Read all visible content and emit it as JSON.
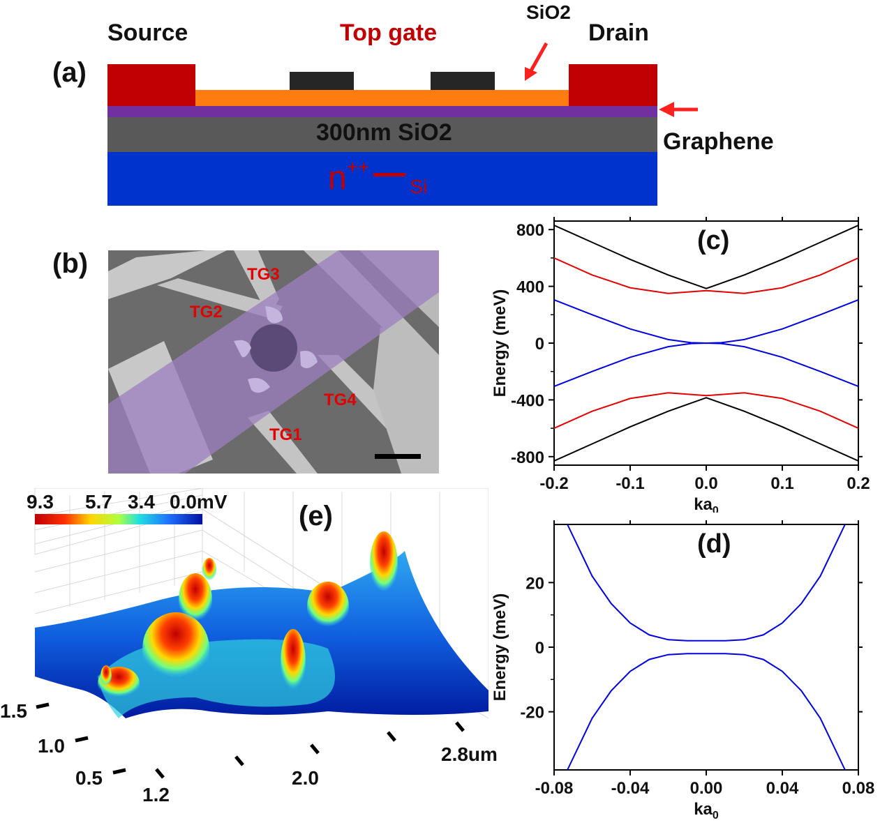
{
  "panel_a": {
    "label": "(a)",
    "source": "Source",
    "top_gate": "Top gate",
    "sio2_top": "SiO2",
    "drain": "Drain",
    "oxide": "300nm SiO2",
    "graphene": "Graphene",
    "substrate_main": "n",
    "substrate_sup": "++",
    "substrate_sub": "Si",
    "colors": {
      "contact": "#c00000",
      "oxide_top": "#ff7c10",
      "gate": "#262626",
      "graphene": "#7030a0",
      "sio2": "#595959",
      "si": "#0033cc",
      "red_text": "#c00000"
    }
  },
  "panel_b": {
    "label": "(b)",
    "tg1": "TG1",
    "tg2": "TG2",
    "tg3": "TG3",
    "tg4": "TG4"
  },
  "panel_e": {
    "label": "(e)",
    "colorbar_ticks": [
      "9.3",
      "5.7",
      "3.4",
      "0.0mV"
    ],
    "y_ticks": [
      "1.5",
      "1.0",
      "0.5"
    ],
    "x_ticks": [
      "1.2",
      "2.0",
      "2.8um"
    ]
  },
  "chart_data": [
    {
      "type": "line",
      "panel": "(c)",
      "xlabel": "ka0",
      "ylabel": "Energy (meV)",
      "xlim": [
        -0.2,
        0.2
      ],
      "ylim": [
        -860,
        860
      ],
      "xticks": [
        -0.2,
        -0.1,
        0.0,
        0.1,
        0.2
      ],
      "xtick_labels": [
        "-0.2",
        "-0.1",
        "0.0",
        "0.1",
        "0.2"
      ],
      "yticks": [
        -800,
        -400,
        0,
        400,
        800
      ],
      "ytick_labels": [
        "-800",
        "-400",
        "0",
        "400",
        "800"
      ],
      "series": [
        {
          "color": "#000000",
          "x": [
            -0.2,
            -0.15,
            -0.1,
            -0.05,
            0.0,
            0.05,
            0.1,
            0.15,
            0.2
          ],
          "y": [
            830,
            710,
            590,
            480,
            385,
            480,
            590,
            710,
            830
          ]
        },
        {
          "color": "#000000",
          "x": [
            -0.2,
            -0.15,
            -0.1,
            -0.05,
            0.0,
            0.05,
            0.1,
            0.15,
            0.2
          ],
          "y": [
            -830,
            -710,
            -590,
            -480,
            -385,
            -480,
            -590,
            -710,
            -830
          ]
        },
        {
          "color": "#e00000",
          "x": [
            -0.2,
            -0.15,
            -0.1,
            -0.05,
            0.0,
            0.05,
            0.1,
            0.15,
            0.2
          ],
          "y": [
            600,
            480,
            390,
            350,
            370,
            350,
            390,
            480,
            600
          ]
        },
        {
          "color": "#e00000",
          "x": [
            -0.2,
            -0.15,
            -0.1,
            -0.05,
            0.0,
            0.05,
            0.1,
            0.15,
            0.2
          ],
          "y": [
            -600,
            -480,
            -390,
            -350,
            -370,
            -350,
            -390,
            -480,
            -600
          ]
        },
        {
          "color": "#0000dd",
          "x": [
            -0.2,
            -0.15,
            -0.1,
            -0.05,
            -0.02,
            0.0,
            0.02,
            0.05,
            0.1,
            0.15,
            0.2
          ],
          "y": [
            305,
            200,
            100,
            25,
            3,
            0,
            3,
            25,
            100,
            200,
            305
          ]
        },
        {
          "color": "#0000dd",
          "x": [
            -0.2,
            -0.15,
            -0.1,
            -0.05,
            -0.02,
            0.0,
            0.02,
            0.05,
            0.1,
            0.15,
            0.2
          ],
          "y": [
            -305,
            -200,
            -100,
            -25,
            -3,
            0,
            -3,
            -25,
            -100,
            -200,
            -305
          ]
        }
      ]
    },
    {
      "type": "line",
      "panel": "(d)",
      "xlabel": "ka0",
      "ylabel": "Energy (meV)",
      "xlim": [
        -0.08,
        0.08
      ],
      "ylim": [
        -38,
        38
      ],
      "xticks": [
        -0.08,
        -0.04,
        0.0,
        0.04,
        0.08
      ],
      "xtick_labels": [
        "-0.08",
        "-0.04",
        "0.00",
        "0.04",
        "0.08"
      ],
      "yticks": [
        -20,
        0,
        20
      ],
      "ytick_labels": [
        "-20",
        "0",
        "20"
      ],
      "series": [
        {
          "color": "#0000dd",
          "x": [
            -0.073,
            -0.06,
            -0.05,
            -0.04,
            -0.03,
            -0.02,
            -0.01,
            0.0,
            0.01,
            0.02,
            0.03,
            0.04,
            0.05,
            0.06,
            0.073
          ],
          "y": [
            38,
            22,
            13.5,
            7.5,
            3.8,
            2.3,
            2.0,
            2.0,
            2.0,
            2.3,
            3.8,
            7.5,
            13.5,
            22,
            38
          ]
        },
        {
          "color": "#0000dd",
          "x": [
            -0.073,
            -0.06,
            -0.05,
            -0.04,
            -0.03,
            -0.02,
            -0.01,
            0.0,
            0.01,
            0.02,
            0.03,
            0.04,
            0.05,
            0.06,
            0.073
          ],
          "y": [
            -38,
            -22,
            -13.5,
            -7.5,
            -3.8,
            -2.3,
            -2.0,
            -2.0,
            -2.0,
            -2.3,
            -3.8,
            -7.5,
            -13.5,
            -22,
            -38
          ]
        }
      ]
    }
  ]
}
